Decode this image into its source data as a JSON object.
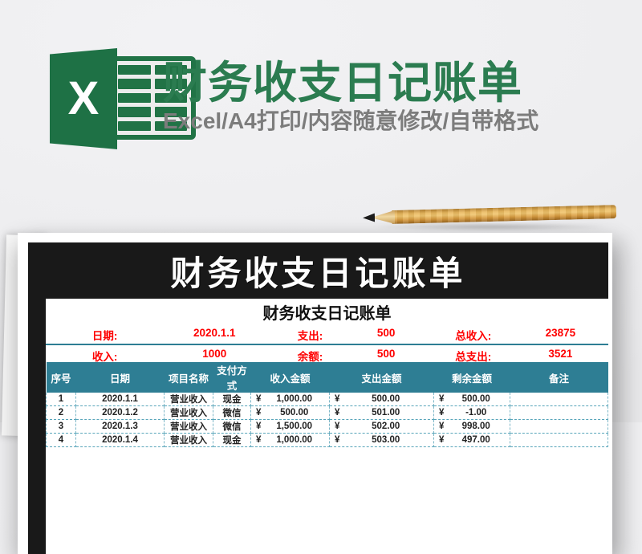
{
  "colors": {
    "brand_green": "#1e7145",
    "title_green": "#2b7c50",
    "banner_black": "#191919",
    "table_teal": "#2e7e94",
    "summary_red": "#fe0000",
    "pencil_wood": "#e0a94f"
  },
  "hero": {
    "logo_letter": "X",
    "title": "财务收支日记账单",
    "subtitle": "Excel/A4打印/内容随意修改/自带格式"
  },
  "poster": {
    "banner_title": "财务收支日记账单"
  },
  "sheet": {
    "title": "财务收支日记账单",
    "summary": {
      "rows": [
        {
          "pairs": [
            {
              "label": "日期:",
              "value": "2020.1.1"
            },
            {
              "label": "支出:",
              "value": "500"
            },
            {
              "label": "总收入:",
              "value": "23875"
            }
          ]
        },
        {
          "pairs": [
            {
              "label": "收入:",
              "value": "1000"
            },
            {
              "label": "余额:",
              "value": "500"
            },
            {
              "label": "总支出:",
              "value": "3521"
            }
          ]
        }
      ]
    },
    "table": {
      "headers": [
        "序号",
        "日期",
        "项目名称",
        "支付方式",
        "收入金额",
        "支出金额",
        "剩余金额",
        "备注"
      ],
      "currency_symbol": "¥",
      "rows": [
        {
          "no": "1",
          "date": "2020.1.1",
          "item": "营业收入",
          "method": "现金",
          "income": "1,000.00",
          "expense": "500.00",
          "balance": "500.00",
          "note": ""
        },
        {
          "no": "2",
          "date": "2020.1.2",
          "item": "营业收入",
          "method": "微信",
          "income": "500.00",
          "expense": "501.00",
          "balance": "-1.00",
          "note": ""
        },
        {
          "no": "3",
          "date": "2020.1.3",
          "item": "营业收入",
          "method": "微信",
          "income": "1,500.00",
          "expense": "502.00",
          "balance": "998.00",
          "note": ""
        },
        {
          "no": "4",
          "date": "2020.1.4",
          "item": "营业收入",
          "method": "现金",
          "income": "1,000.00",
          "expense": "503.00",
          "balance": "497.00",
          "note": ""
        }
      ]
    }
  }
}
